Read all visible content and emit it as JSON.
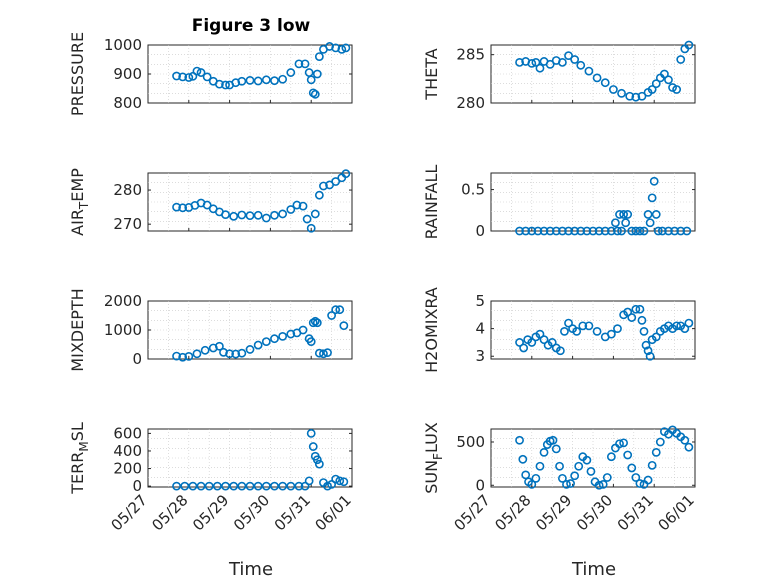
{
  "figure": {
    "title": "Figure 3 low",
    "xlabel": "Time"
  },
  "colors": {
    "marker": "#0072bd",
    "axis": "#262626",
    "grid": "#c8c8c8"
  },
  "chart_data": [
    {
      "type": "scatter",
      "ylabel": "PRESSURE",
      "xlim": [
        "05/27",
        "06/01"
      ],
      "ylim": [
        800,
        1000
      ],
      "yticks": [
        "800",
        "900",
        "1000"
      ],
      "xticks": [],
      "grid": true,
      "series": [
        {
          "x": [
            27.7,
            27.85,
            28.0,
            28.1,
            28.2,
            28.3,
            28.45,
            28.6,
            28.75,
            28.9,
            29.0,
            29.15,
            29.3,
            29.5,
            29.7,
            29.9,
            30.1,
            30.3,
            30.5,
            30.7,
            30.85,
            30.95,
            31.0,
            31.05,
            31.1,
            31.15,
            31.2,
            31.3,
            31.45,
            31.6,
            31.75,
            31.85
          ],
          "y": [
            893,
            890,
            888,
            892,
            910,
            905,
            890,
            875,
            865,
            862,
            862,
            870,
            875,
            878,
            876,
            880,
            877,
            882,
            905,
            935,
            935,
            905,
            880,
            835,
            830,
            900,
            960,
            985,
            995,
            990,
            985,
            990
          ]
        }
      ]
    },
    {
      "type": "scatter",
      "ylabel": "THETA",
      "xlim": [
        "05/27",
        "06/01"
      ],
      "ylim": [
        280,
        286
      ],
      "yticks": [
        "280",
        "285"
      ],
      "xticks": [],
      "grid": true,
      "series": [
        {
          "x": [
            27.7,
            27.85,
            28.0,
            28.1,
            28.2,
            28.3,
            28.45,
            28.6,
            28.75,
            28.9,
            29.05,
            29.2,
            29.4,
            29.6,
            29.8,
            30.0,
            30.2,
            30.4,
            30.55,
            30.7,
            30.85,
            30.95,
            31.05,
            31.15,
            31.25,
            31.35,
            31.45,
            31.55,
            31.65,
            31.75,
            31.85
          ],
          "y": [
            284.2,
            284.3,
            284.1,
            284.2,
            283.6,
            284.3,
            284.0,
            284.4,
            284.2,
            284.9,
            284.5,
            283.9,
            283.3,
            282.6,
            282.1,
            281.4,
            281.0,
            280.7,
            280.6,
            280.7,
            281.1,
            281.4,
            282.0,
            282.6,
            283.0,
            282.4,
            281.6,
            281.4,
            284.5,
            285.6,
            286.0
          ]
        }
      ]
    },
    {
      "type": "scatter",
      "ylabel": "AIR_TEMP",
      "xlim": [
        "05/27",
        "06/01"
      ],
      "ylim": [
        268,
        285
      ],
      "yticks": [
        "270",
        "280"
      ],
      "xticks": [],
      "grid": true,
      "series": [
        {
          "x": [
            27.7,
            27.85,
            28.0,
            28.15,
            28.3,
            28.45,
            28.6,
            28.75,
            28.9,
            29.1,
            29.3,
            29.5,
            29.7,
            29.9,
            30.1,
            30.3,
            30.5,
            30.65,
            30.8,
            30.9,
            31.0,
            31.1,
            31.2,
            31.3,
            31.45,
            31.6,
            31.75,
            31.85
          ],
          "y": [
            275,
            274.8,
            274.9,
            275.5,
            276.2,
            275.6,
            274.5,
            273.6,
            272.8,
            272.3,
            272.7,
            272.5,
            272.6,
            271.8,
            272.6,
            273.0,
            274.3,
            275.6,
            275.3,
            271.5,
            268.8,
            273,
            278.5,
            281.2,
            281.5,
            282.5,
            283.6,
            284.8
          ]
        }
      ]
    },
    {
      "type": "scatter",
      "ylabel": "RAINFALL",
      "xlim": [
        "05/27",
        "06/01"
      ],
      "ylim": [
        0,
        0.7
      ],
      "yticks": [
        "0",
        "0.5"
      ],
      "xticks": [],
      "grid": true,
      "series": [
        {
          "x": [
            27.7,
            27.85,
            28.0,
            28.15,
            28.3,
            28.45,
            28.6,
            28.75,
            28.9,
            29.05,
            29.2,
            29.35,
            29.5,
            29.65,
            29.8,
            29.95,
            30.05,
            30.1,
            30.15,
            30.2,
            30.25,
            30.3,
            30.35,
            30.45,
            30.55,
            30.65,
            30.75,
            30.85,
            30.9,
            30.95,
            31.0,
            31.05,
            31.1,
            31.2,
            31.35,
            31.5,
            31.65,
            31.8
          ],
          "y": [
            0,
            0,
            0,
            0,
            0,
            0,
            0,
            0,
            0,
            0,
            0,
            0,
            0,
            0,
            0,
            0,
            0.1,
            0,
            0.2,
            0,
            0.2,
            0.1,
            0.2,
            0,
            0,
            0,
            0,
            0.2,
            0.1,
            0.4,
            0.6,
            0.2,
            0,
            0,
            0,
            0,
            0,
            0
          ]
        }
      ]
    },
    {
      "type": "scatter",
      "ylabel": "MIXDEPTH",
      "xlim": [
        "05/27",
        "06/01"
      ],
      "ylim": [
        0,
        2000
      ],
      "yticks": [
        "0",
        "1000",
        "2000"
      ],
      "xticks": [],
      "grid": true,
      "series": [
        {
          "x": [
            27.7,
            27.85,
            28.0,
            28.2,
            28.4,
            28.6,
            28.75,
            28.85,
            29.0,
            29.15,
            29.3,
            29.5,
            29.7,
            29.9,
            30.1,
            30.3,
            30.5,
            30.65,
            30.8,
            30.95,
            31.0,
            31.05,
            31.1,
            31.15,
            31.2,
            31.3,
            31.4,
            31.5,
            31.6,
            31.7,
            31.8
          ],
          "y": [
            100,
            60,
            90,
            180,
            300,
            380,
            440,
            230,
            180,
            170,
            200,
            330,
            480,
            600,
            700,
            780,
            860,
            900,
            1000,
            700,
            600,
            1250,
            1300,
            1250,
            200,
            180,
            220,
            1500,
            1700,
            1700,
            1150
          ]
        }
      ]
    },
    {
      "type": "scatter",
      "ylabel": "H2OMIXRA",
      "xlim": [
        "05/27",
        "06/01"
      ],
      "ylim": [
        2.9,
        5.0
      ],
      "yticks": [
        "3",
        "4",
        "5"
      ],
      "xticks": [],
      "grid": true,
      "series": [
        {
          "x": [
            27.7,
            27.8,
            27.9,
            28.0,
            28.1,
            28.2,
            28.3,
            28.4,
            28.5,
            28.6,
            28.7,
            28.8,
            28.9,
            29.0,
            29.1,
            29.25,
            29.4,
            29.6,
            29.8,
            29.95,
            30.1,
            30.25,
            30.35,
            30.45,
            30.55,
            30.65,
            30.7,
            30.75,
            30.8,
            30.85,
            30.9,
            30.95,
            31.05,
            31.15,
            31.25,
            31.35,
            31.45,
            31.55,
            31.65,
            31.75,
            31.85
          ],
          "y": [
            3.5,
            3.3,
            3.6,
            3.5,
            3.7,
            3.8,
            3.6,
            3.4,
            3.5,
            3.3,
            3.2,
            3.9,
            4.2,
            4.0,
            3.9,
            4.1,
            4.1,
            3.9,
            3.7,
            3.8,
            4.0,
            4.5,
            4.6,
            4.4,
            4.7,
            4.7,
            4.3,
            3.9,
            3.4,
            3.2,
            3.0,
            3.6,
            3.7,
            3.9,
            4.0,
            4.1,
            4.0,
            4.1,
            4.1,
            4.0,
            4.2
          ]
        }
      ]
    },
    {
      "type": "scatter",
      "ylabel": "TERR_MSL",
      "xlim": [
        "05/27",
        "06/01"
      ],
      "ylim": [
        -10,
        650
      ],
      "yticks": [
        "0",
        "200",
        "400",
        "600"
      ],
      "xticks": [
        "05/27",
        "05/28",
        "05/29",
        "05/30",
        "05/31",
        "06/01"
      ],
      "grid": true,
      "series": [
        {
          "x": [
            27.7,
            27.9,
            28.1,
            28.3,
            28.5,
            28.7,
            28.9,
            29.1,
            29.3,
            29.5,
            29.7,
            29.9,
            30.1,
            30.3,
            30.5,
            30.7,
            30.85,
            30.95,
            31.0,
            31.05,
            31.1,
            31.15,
            31.2,
            31.3,
            31.4,
            31.5,
            31.6,
            31.7,
            31.8
          ],
          "y": [
            0,
            0,
            0,
            0,
            0,
            0,
            0,
            0,
            0,
            0,
            0,
            0,
            0,
            0,
            0,
            0,
            0,
            60,
            600,
            450,
            340,
            300,
            250,
            40,
            0,
            20,
            80,
            60,
            50
          ]
        }
      ]
    },
    {
      "type": "scatter",
      "ylabel": "SUN_FLUX",
      "xlim": [
        "05/27",
        "06/01"
      ],
      "ylim": [
        -20,
        650
      ],
      "yticks": [
        "0",
        "500"
      ],
      "xticks": [
        "05/27",
        "05/28",
        "05/29",
        "05/30",
        "05/31",
        "06/01"
      ],
      "grid": true,
      "series": [
        {
          "x": [
            27.7,
            27.78,
            27.85,
            27.92,
            28.0,
            28.1,
            28.2,
            28.3,
            28.38,
            28.45,
            28.52,
            28.6,
            28.68,
            28.75,
            28.85,
            28.95,
            29.05,
            29.15,
            29.25,
            29.35,
            29.45,
            29.55,
            29.65,
            29.75,
            29.85,
            29.95,
            30.05,
            30.15,
            30.25,
            30.35,
            30.45,
            30.55,
            30.65,
            30.75,
            30.85,
            30.95,
            31.05,
            31.15,
            31.25,
            31.35,
            31.45,
            31.55,
            31.65,
            31.75,
            31.85
          ],
          "y": [
            520,
            300,
            120,
            40,
            10,
            80,
            220,
            380,
            470,
            510,
            520,
            420,
            220,
            80,
            10,
            20,
            110,
            220,
            330,
            290,
            160,
            40,
            0,
            10,
            90,
            330,
            430,
            480,
            490,
            350,
            200,
            90,
            20,
            10,
            60,
            230,
            380,
            500,
            620,
            590,
            640,
            600,
            560,
            520,
            440
          ]
        }
      ]
    }
  ]
}
